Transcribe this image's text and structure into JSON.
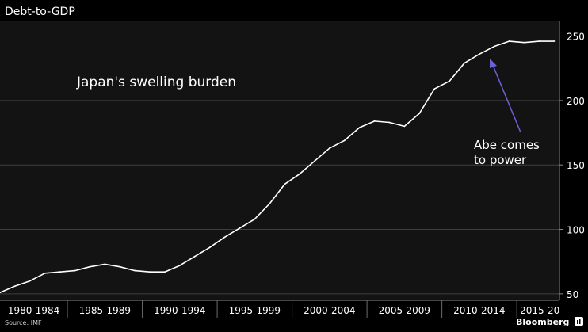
{
  "colors": {
    "background": "#000000",
    "plot_background": "#131313",
    "grid": "#3f3f3f",
    "line": "#ffffff",
    "text": "#ffffff",
    "source_text": "#cfcfcf",
    "annotation_arrow": "#6b62d8"
  },
  "footer": {
    "source": "Source: IMF",
    "brand": "Bloomberg",
    "brand_icon": "bloomberg-logo-icon"
  },
  "chart_data": {
    "type": "line",
    "title": "Debt-to-GDP",
    "subtitle": "Japan's swelling burden",
    "annotation": {
      "lines": [
        "Abe comes",
        "to power"
      ],
      "target_year": 2012
    },
    "x": [
      1980,
      1981,
      1982,
      1983,
      1984,
      1985,
      1986,
      1987,
      1988,
      1989,
      1990,
      1991,
      1992,
      1993,
      1994,
      1995,
      1996,
      1997,
      1998,
      1999,
      2000,
      2001,
      2002,
      2003,
      2004,
      2005,
      2006,
      2007,
      2008,
      2009,
      2010,
      2011,
      2012,
      2013,
      2014,
      2015,
      2016,
      2017
    ],
    "series": [
      {
        "values": [
          51,
          56,
          60,
          66,
          67,
          68,
          71,
          73,
          71,
          68,
          67,
          67,
          72,
          79,
          86,
          94,
          101,
          108,
          120,
          135,
          143,
          153,
          163,
          169,
          179,
          184,
          183,
          180,
          190,
          209,
          215,
          229,
          236,
          242,
          246,
          245,
          246,
          246
        ]
      }
    ],
    "x_categories": [
      "1980-1984",
      "1985-1989",
      "1990-1994",
      "1995-1999",
      "2000-2004",
      "2005-2009",
      "2010-2014",
      "2015-20"
    ],
    "xlim": [
      1980,
      2017.35
    ],
    "ylim": [
      45,
      262
    ],
    "y_ticks": [
      50,
      100,
      150,
      200,
      250
    ],
    "y_axis_side": "right",
    "grid": true
  }
}
